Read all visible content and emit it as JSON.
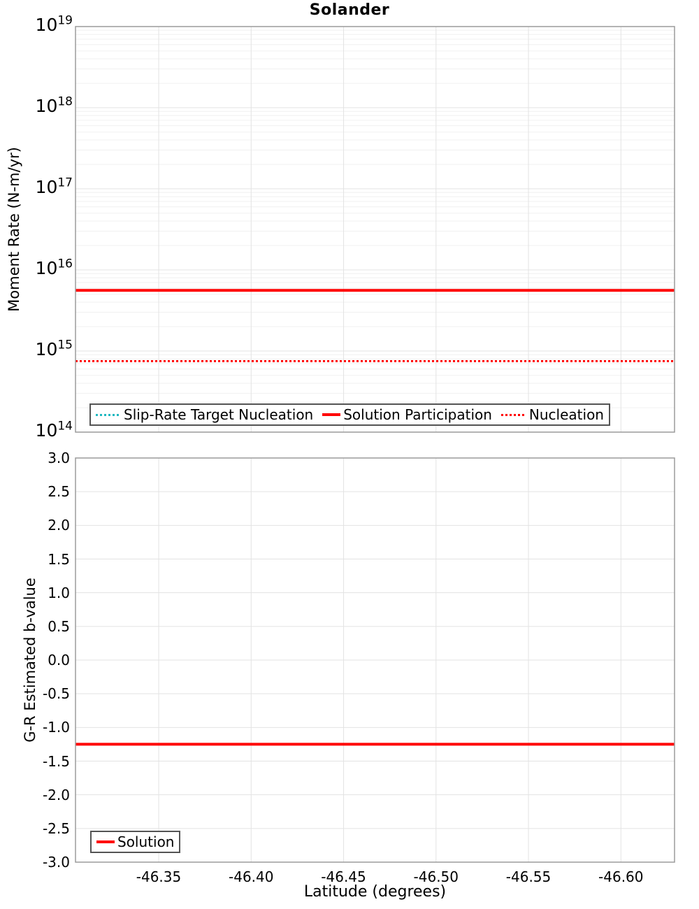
{
  "chart_data": [
    {
      "type": "line",
      "title": "Solander",
      "ylabel": "Moment Rate (N-m/yr)",
      "xlabel": "",
      "yscale": "log",
      "ylim": [
        100000000000000.0,
        1e+19
      ],
      "ytick_base": "10",
      "ytick_exponents": [
        "19",
        "18",
        "17",
        "16",
        "15",
        "14"
      ],
      "xlim_left": -46.305,
      "xlim_right": -46.629,
      "xtick_values": [
        -46.35,
        -46.4,
        -46.45,
        -46.5,
        -46.55,
        -46.6
      ],
      "grid": true,
      "legend_position": "lower-left",
      "series": [
        {
          "name": "Slip-Rate Target Nucleation",
          "color": "#20b8c0",
          "line_style": "dotted",
          "shape": "hline",
          "y_value": 750000000000000.0
        },
        {
          "name": "Solution Participation",
          "color": "#ff0000",
          "line_style": "solid",
          "shape": "hline",
          "y_value": 5600000000000000.0
        },
        {
          "name": "Nucleation",
          "color": "#ff0000",
          "line_style": "dotted",
          "shape": "hline",
          "y_value": 750000000000000.0
        }
      ]
    },
    {
      "type": "line",
      "title": "",
      "ylabel": "G-R Estimated b-value",
      "xlabel": "Latitude (degrees)",
      "yscale": "linear",
      "ylim": [
        -3.0,
        3.0
      ],
      "ytick_values": [
        3.0,
        2.5,
        2.0,
        1.5,
        1.0,
        0.5,
        0.0,
        -0.5,
        -1.0,
        -1.5,
        -2.0,
        -2.5,
        -3.0
      ],
      "ytick_labels": [
        "3.0",
        "2.5",
        "2.0",
        "1.5",
        "1.0",
        "0.5",
        "0.0",
        "-0.5",
        "-1.0",
        "-1.5",
        "-2.0",
        "-2.5",
        "-3.0"
      ],
      "xlim_left": -46.305,
      "xlim_right": -46.629,
      "xtick_values": [
        -46.35,
        -46.4,
        -46.45,
        -46.5,
        -46.55,
        -46.6
      ],
      "xtick_labels": [
        "-46.35",
        "-46.40",
        "-46.45",
        "-46.50",
        "-46.55",
        "-46.60"
      ],
      "grid": true,
      "legend_position": "lower-left",
      "series": [
        {
          "name": "Solution",
          "color": "#ff0000",
          "line_style": "solid",
          "shape": "hline",
          "y_value": -1.25
        }
      ]
    }
  ]
}
